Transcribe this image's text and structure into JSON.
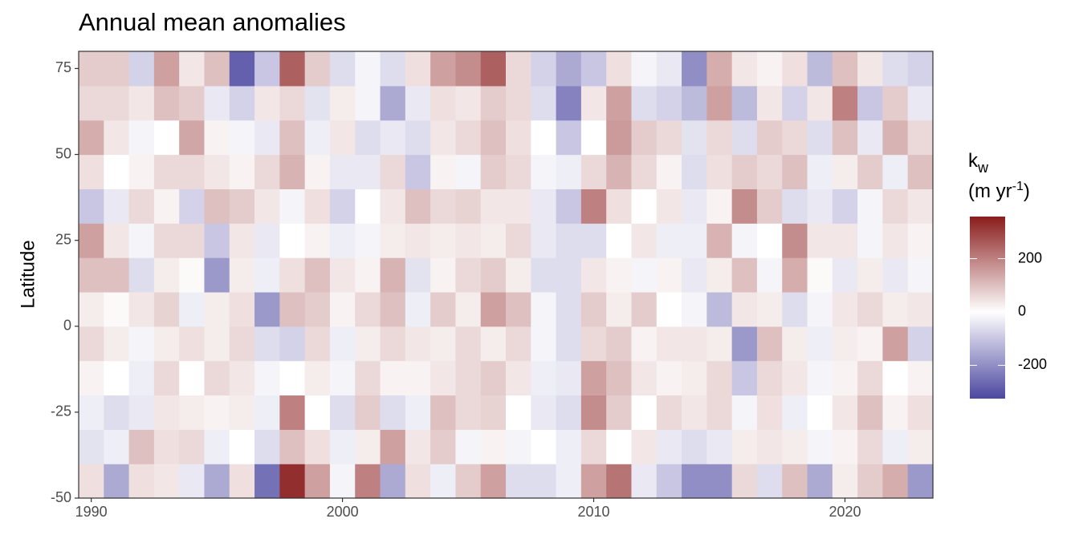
{
  "chart_data": {
    "type": "heatmap",
    "title": "Annual mean anomalies",
    "y_label": "Latitude",
    "legend_title": [
      "k",
      "w",
      "(m yr",
      "-1",
      ")"
    ],
    "x": [
      1990,
      1991,
      1992,
      1993,
      1994,
      1995,
      1996,
      1997,
      1998,
      1999,
      2000,
      2001,
      2002,
      2003,
      2004,
      2005,
      2006,
      2007,
      2008,
      2009,
      2010,
      2011,
      2012,
      2013,
      2014,
      2015,
      2016,
      2017,
      2018,
      2019,
      2020,
      2021,
      2022,
      2023
    ],
    "y": [
      -45,
      -35,
      -25,
      -15,
      -5,
      5,
      15,
      25,
      35,
      45,
      55,
      65,
      75
    ],
    "z": [
      [
        50,
        -50,
        -30,
        20,
        60,
        30,
        100,
        150,
        -100,
        50,
        130,
        60,
        80
      ],
      [
        -150,
        -30,
        -60,
        0,
        30,
        10,
        100,
        40,
        -40,
        0,
        40,
        60,
        80
      ],
      [
        50,
        100,
        -40,
        -30,
        -20,
        40,
        -60,
        -20,
        60,
        20,
        -20,
        40,
        -80
      ],
      [
        40,
        50,
        40,
        60,
        30,
        70,
        30,
        60,
        20,
        60,
        0,
        100,
        150
      ],
      [
        -40,
        60,
        30,
        0,
        50,
        -30,
        10,
        60,
        -80,
        60,
        140,
        80,
        40
      ],
      [
        -150,
        -30,
        20,
        60,
        30,
        30,
        -180,
        -100,
        100,
        40,
        20,
        -40,
        100
      ],
      [
        50,
        0,
        30,
        40,
        60,
        50,
        30,
        40,
        80,
        20,
        -20,
        -80,
        -280
      ],
      [
        -250,
        -60,
        -30,
        -20,
        -60,
        -180,
        -30,
        -40,
        40,
        60,
        -40,
        40,
        -100
      ],
      [
        330,
        100,
        200,
        0,
        -80,
        100,
        50,
        0,
        -20,
        120,
        100,
        60,
        250
      ],
      [
        150,
        50,
        0,
        30,
        60,
        80,
        100,
        20,
        50,
        20,
        -30,
        -50,
        80
      ],
      [
        -20,
        -30,
        -60,
        -20,
        -30,
        20,
        40,
        -30,
        -80,
        -40,
        40,
        30,
        -60
      ],
      [
        200,
        30,
        80,
        60,
        30,
        60,
        20,
        -20,
        0,
        -40,
        -60,
        -20,
        -20
      ],
      [
        -150,
        150,
        -60,
        20,
        60,
        100,
        120,
        30,
        40,
        60,
        -40,
        -150,
        -60
      ],
      [
        50,
        40,
        -30,
        20,
        40,
        -30,
        -50,
        40,
        100,
        -100,
        -60,
        -40,
        50
      ],
      [
        -30,
        80,
        100,
        40,
        30,
        80,
        20,
        30,
        60,
        20,
        40,
        50,
        150
      ],
      [
        80,
        -20,
        60,
        60,
        60,
        30,
        60,
        40,
        70,
        -20,
        60,
        40,
        180
      ],
      [
        150,
        20,
        70,
        80,
        30,
        150,
        80,
        30,
        40,
        80,
        100,
        80,
        250
      ],
      [
        -60,
        -20,
        0,
        40,
        60,
        100,
        30,
        60,
        40,
        60,
        50,
        60,
        60
      ],
      [
        -60,
        0,
        -40,
        -30,
        -20,
        -20,
        -60,
        -40,
        -40,
        -20,
        0,
        -60,
        -80
      ],
      [
        -30,
        -30,
        -60,
        -40,
        -60,
        -60,
        -60,
        -60,
        -100,
        -30,
        -100,
        -220,
        -150
      ],
      [
        150,
        60,
        180,
        150,
        60,
        80,
        40,
        -60,
        200,
        60,
        0,
        40,
        -100
      ],
      [
        220,
        0,
        80,
        100,
        80,
        30,
        20,
        0,
        50,
        120,
        160,
        150,
        50
      ],
      [
        -40,
        40,
        0,
        40,
        20,
        80,
        -20,
        40,
        0,
        60,
        80,
        -60,
        -20
      ],
      [
        -100,
        -40,
        60,
        20,
        40,
        0,
        20,
        -30,
        40,
        20,
        60,
        -80,
        -40
      ],
      [
        -200,
        -60,
        40,
        30,
        40,
        -20,
        -40,
        -30,
        -40,
        -60,
        -50,
        -120,
        -200
      ],
      [
        -200,
        -40,
        60,
        60,
        30,
        -120,
        30,
        120,
        20,
        50,
        60,
        150,
        130
      ],
      [
        60,
        30,
        -20,
        -100,
        -180,
        40,
        100,
        -20,
        180,
        80,
        -60,
        -120,
        40
      ],
      [
        -60,
        40,
        50,
        60,
        100,
        30,
        -20,
        0,
        80,
        60,
        80,
        40,
        20
      ],
      [
        100,
        30,
        -30,
        40,
        30,
        -60,
        130,
        180,
        -60,
        100,
        60,
        -80,
        50
      ],
      [
        -150,
        -20,
        0,
        -20,
        -30,
        -20,
        10,
        40,
        -40,
        -30,
        -60,
        40,
        -120
      ],
      [
        30,
        20,
        40,
        20,
        30,
        40,
        -40,
        40,
        -80,
        30,
        100,
        200,
        100
      ],
      [
        80,
        60,
        100,
        60,
        20,
        60,
        30,
        -20,
        -20,
        80,
        -40,
        -100,
        40
      ],
      [
        130,
        -30,
        20,
        0,
        150,
        30,
        -40,
        40,
        60,
        -30,
        120,
        80,
        -60
      ],
      [
        -180,
        30,
        50,
        20,
        -80,
        40,
        -20,
        20,
        40,
        100,
        60,
        -40,
        -80
      ]
    ],
    "cell_height": 10,
    "xlim": [
      1989.5,
      2023.5
    ],
    "xticks": [
      1990,
      2000,
      2010,
      2020
    ],
    "ylim": [
      -50,
      80
    ],
    "yticks": [
      -50,
      -25,
      0,
      25,
      50,
      75
    ],
    "zlim": [
      -325,
      358
    ],
    "zticks": [
      -200,
      0,
      200
    ],
    "palette": [
      "#4b47a0",
      "#ffffff",
      "#8a1c1c"
    ]
  }
}
